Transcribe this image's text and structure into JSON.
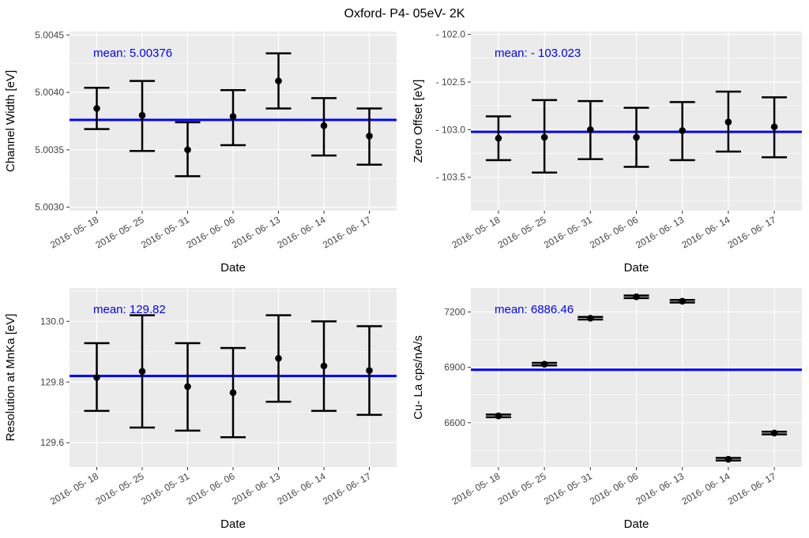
{
  "title": "Oxford- P4- 05eV- 2K",
  "chart_data": [
    {
      "type": "scatter",
      "errorbars": true,
      "x": [
        "2016- 05- 18",
        "2016- 05- 25",
        "2016- 05- 31",
        "2016- 06- 06",
        "2016- 06- 13",
        "2016- 06- 14",
        "2016- 06- 17"
      ],
      "y": [
        5.00386,
        5.0038,
        5.0035,
        5.00379,
        5.0041,
        5.00371,
        5.00362
      ],
      "ymin": [
        5.00368,
        5.00349,
        5.00327,
        5.00354,
        5.00386,
        5.00345,
        5.00337
      ],
      "ymax": [
        5.00404,
        5.0041,
        5.00374,
        5.00402,
        5.00434,
        5.00395,
        5.00386
      ],
      "mean": 5.00376,
      "mean_label": "mean: 5.00376",
      "xlabel": "Date",
      "ylabel": "Channel Width [eV]",
      "ylim": [
        5.00297,
        5.00453
      ],
      "yticks": [
        5.003,
        5.0035,
        5.004,
        5.0045
      ],
      "ytick_labels": [
        "5.0030",
        "5.0035",
        "5.0040",
        "5.0045"
      ],
      "grid": true,
      "colors": {
        "points": "#000000",
        "mean_line": "#0000ff",
        "panel": "#ebebeb",
        "grid": "#ffffff"
      }
    },
    {
      "type": "scatter",
      "errorbars": true,
      "x": [
        "2016- 05- 18",
        "2016- 05- 25",
        "2016- 05- 31",
        "2016- 06- 06",
        "2016- 06- 13",
        "2016- 06- 14",
        "2016- 06- 17"
      ],
      "y": [
        -103.09,
        -103.08,
        -103.0,
        -103.08,
        -103.01,
        -102.92,
        -102.97
      ],
      "ymin": [
        -103.32,
        -103.45,
        -103.31,
        -103.39,
        -103.32,
        -103.23,
        -103.29
      ],
      "ymax": [
        -102.86,
        -102.69,
        -102.7,
        -102.77,
        -102.71,
        -102.6,
        -102.66
      ],
      "mean": -103.023,
      "mean_label": "mean: - 103.023",
      "xlabel": "Date",
      "ylabel": "Zero Offset [eV]",
      "ylim": [
        -103.85,
        -101.97
      ],
      "yticks": [
        -103.5,
        -103.0,
        -102.5,
        -102.0
      ],
      "ytick_labels": [
        "- 103.5",
        "- 103.0",
        "- 102.5",
        "- 102.0"
      ],
      "grid": true,
      "colors": {
        "points": "#000000",
        "mean_line": "#0000ff",
        "panel": "#ebebeb",
        "grid": "#ffffff"
      }
    },
    {
      "type": "scatter",
      "errorbars": true,
      "x": [
        "2016- 05- 18",
        "2016- 05- 25",
        "2016- 05- 31",
        "2016- 06- 06",
        "2016- 06- 13",
        "2016- 06- 14",
        "2016- 06- 17"
      ],
      "y": [
        129.815,
        129.835,
        129.785,
        129.765,
        129.878,
        129.853,
        129.838
      ],
      "ymin": [
        129.705,
        129.65,
        129.64,
        129.618,
        129.735,
        129.705,
        129.692
      ],
      "ymax": [
        129.928,
        130.02,
        129.928,
        129.912,
        130.02,
        130.0,
        129.984
      ],
      "mean": 129.82,
      "mean_label": "mean: 129.82",
      "xlabel": "Date",
      "ylabel": "Resolution at MnKa [eV]",
      "ylim": [
        129.52,
        130.11
      ],
      "yticks": [
        129.6,
        129.8,
        130.0
      ],
      "ytick_labels": [
        "129.6",
        "129.8",
        "130.0"
      ],
      "grid": true,
      "colors": {
        "points": "#000000",
        "mean_line": "#0000ff",
        "panel": "#ebebeb",
        "grid": "#ffffff"
      }
    },
    {
      "type": "scatter",
      "errorbars": true,
      "x": [
        "2016- 05- 18",
        "2016- 05- 25",
        "2016- 05- 31",
        "2016- 06- 06",
        "2016- 06- 13",
        "2016- 06- 14",
        "2016- 06- 17"
      ],
      "y": [
        6637,
        6917,
        7166,
        7282,
        7258,
        6402,
        6544
      ],
      "ymin": [
        6630,
        6910,
        7159,
        7275,
        7251,
        6395,
        6537
      ],
      "ymax": [
        6644,
        6924,
        7173,
        7289,
        7265,
        6409,
        6551
      ],
      "mean": 6886.46,
      "mean_label": "mean: 6886.46",
      "xlabel": "Date",
      "ylabel": "Cu- La cps/nA/s",
      "ylim": [
        6360,
        7330
      ],
      "yticks": [
        6600,
        6900,
        7200
      ],
      "ytick_labels": [
        "6600",
        "6900",
        "7200"
      ],
      "grid": true,
      "colors": {
        "points": "#000000",
        "mean_line": "#0000ff",
        "panel": "#ebebeb",
        "grid": "#ffffff"
      }
    }
  ]
}
